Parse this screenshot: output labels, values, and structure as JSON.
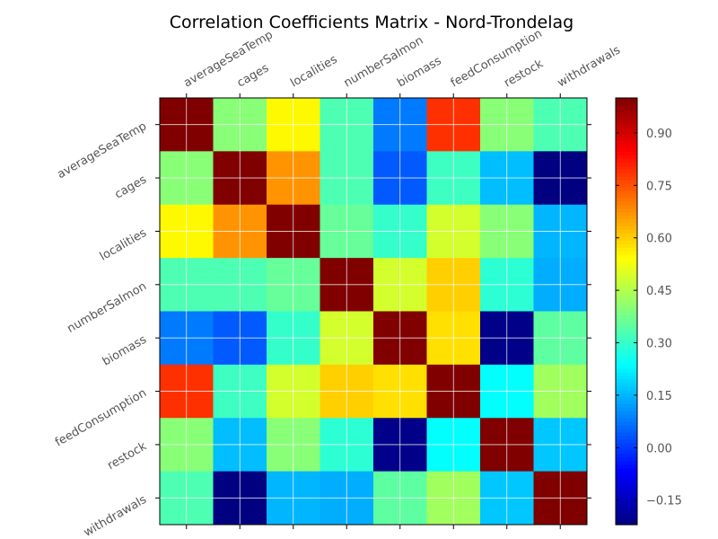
{
  "chart_data": {
    "type": "heatmap",
    "title": "Correlation Coefficients Matrix - Nord-Trondelag",
    "xlabel": "",
    "ylabel": "",
    "rows": [
      "averageSeaTemp",
      "cages",
      "localities",
      "numberSalmon",
      "biomass",
      "feedConsumption",
      "restock",
      "withdrawals"
    ],
    "columns": [
      "averageSeaTemp",
      "cages",
      "localities",
      "numberSalmon",
      "biomass",
      "feedConsumption",
      "restock",
      "withdrawals"
    ],
    "values": [
      [
        1.0,
        0.4,
        0.55,
        0.33,
        0.08,
        0.79,
        0.4,
        0.33
      ],
      [
        0.4,
        1.0,
        0.67,
        0.33,
        0.04,
        0.31,
        0.16,
        -0.22
      ],
      [
        0.55,
        0.67,
        1.0,
        0.36,
        0.3,
        0.49,
        0.4,
        0.15
      ],
      [
        0.33,
        0.33,
        0.36,
        1.0,
        0.49,
        0.6,
        0.29,
        0.14
      ],
      [
        0.08,
        0.04,
        0.3,
        0.49,
        1.0,
        0.58,
        -0.21,
        0.35
      ],
      [
        0.79,
        0.31,
        0.49,
        0.6,
        0.58,
        1.0,
        0.24,
        0.43
      ],
      [
        0.4,
        0.16,
        0.4,
        0.29,
        -0.21,
        0.24,
        1.0,
        0.17
      ],
      [
        0.33,
        -0.22,
        0.15,
        0.14,
        0.35,
        0.43,
        0.17,
        1.0
      ]
    ],
    "colorscale": "jet",
    "vmin": -0.22,
    "vmax": 1.0,
    "colorbar_ticks": [
      -0.15,
      0.0,
      0.15,
      0.3,
      0.45,
      0.6,
      0.75,
      0.9
    ],
    "colorbar_tick_labels": [
      "−0.15",
      "0.00",
      "0.15",
      "0.30",
      "0.45",
      "0.60",
      "0.75",
      "0.90"
    ],
    "grid": true
  }
}
